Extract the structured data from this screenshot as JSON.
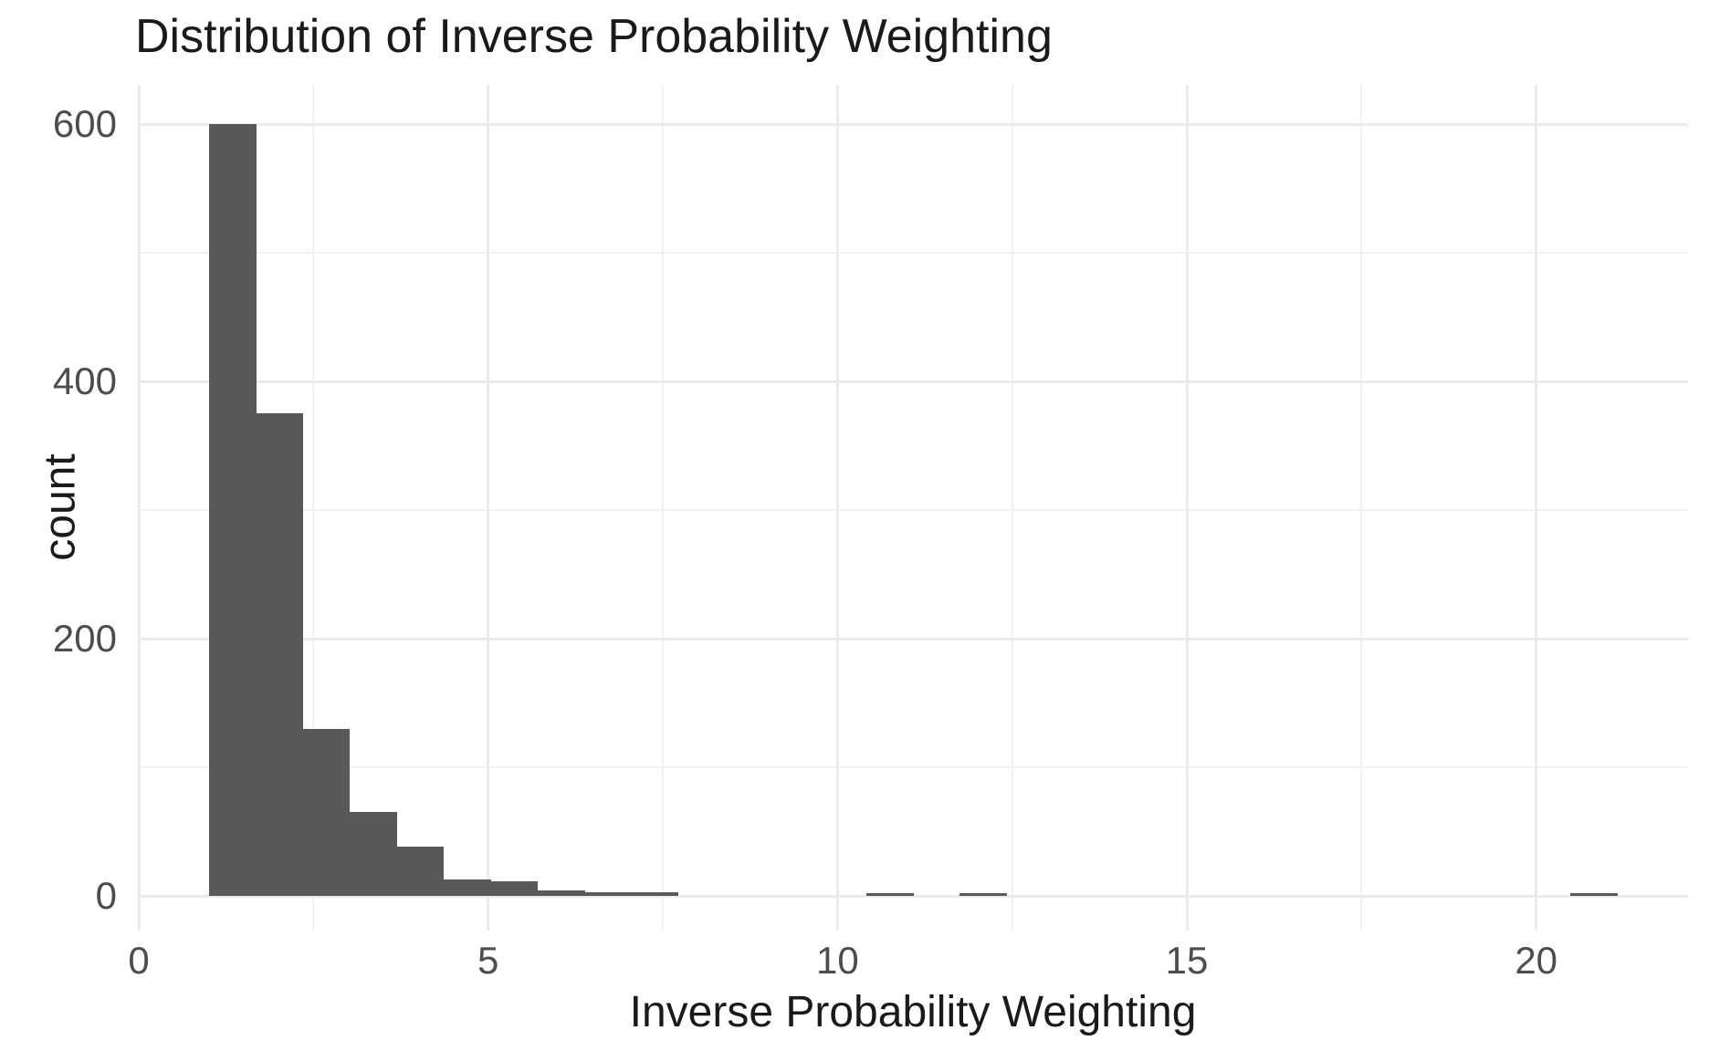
{
  "title": "Distribution of Inverse Probability Weighting",
  "colors": {
    "bar": "#595959",
    "grid_major": "#ebebeb",
    "grid_minor": "#f1f1f1",
    "tick_label": "#4d4d4d",
    "title_text": "#1a1a1a",
    "background": "#ffffff"
  },
  "chart_data": {
    "type": "bar",
    "subtype": "histogram",
    "title": "Distribution of Inverse Probability Weighting",
    "xlabel": "Inverse Probability Weighting",
    "ylabel": "count",
    "bin_start": 1.0,
    "bin_width": 0.672,
    "counts": [
      600,
      375,
      130,
      65,
      38,
      13,
      11,
      4,
      3,
      3,
      0,
      0,
      0,
      0,
      2,
      0,
      2,
      0,
      0,
      0,
      0,
      0,
      0,
      0,
      0,
      0,
      0,
      0,
      0,
      2
    ],
    "x_ticks": [
      0,
      5,
      10,
      15,
      20
    ],
    "x_tick_labels": [
      "0",
      "5",
      "10",
      "15",
      "20"
    ],
    "x_minor_ticks": [
      2.5,
      7.5,
      12.5,
      17.5
    ],
    "y_ticks": [
      0,
      200,
      400,
      600
    ],
    "y_tick_labels": [
      "0",
      "200",
      "400",
      "600"
    ],
    "y_minor_ticks": [
      100,
      300,
      500
    ],
    "xlim": [
      0,
      22.17
    ],
    "ylim": [
      -27,
      631
    ],
    "grid": true,
    "legend": false
  }
}
